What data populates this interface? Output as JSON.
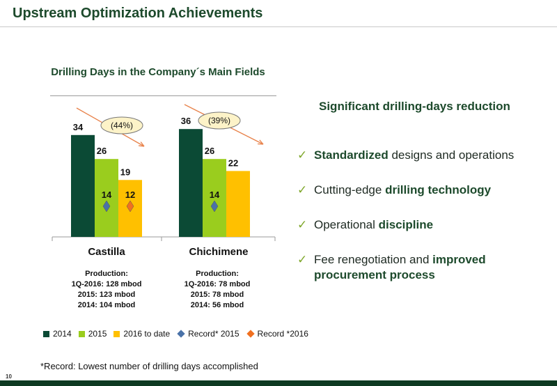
{
  "title": "Upstream Optimization Achievements",
  "colors": {
    "series_2014": "#0b4a35",
    "series_2015": "#9acd1e",
    "series_2016": "#ffc000",
    "record_2015": "#4a72a8",
    "record_2016": "#f07020",
    "brand_green": "#1d4a2c",
    "check_green": "#7fa72b",
    "footer_bar": "#0e3a22"
  },
  "chart_data": {
    "type": "bar",
    "title": "Drilling Days in the Company´s Main Fields",
    "categories": [
      "Castilla",
      "Chichimene"
    ],
    "series": [
      {
        "name": "2014",
        "values": [
          34,
          36
        ]
      },
      {
        "name": "2015",
        "values": [
          26,
          26
        ]
      },
      {
        "name": "2016 to date",
        "values": [
          19,
          22
        ]
      }
    ],
    "markers": [
      {
        "name": "Record* 2015",
        "values": [
          14,
          14
        ],
        "shape": "diamond"
      },
      {
        "name": "Record *2016",
        "values": [
          12,
          null
        ],
        "shape": "diamond"
      }
    ],
    "annotations": [
      {
        "category": "Castilla",
        "text": "(44%)"
      },
      {
        "category": "Chichimene",
        "text": "(39%)"
      }
    ],
    "ylim": [
      0,
      40
    ],
    "grid": false,
    "legend": "bottom"
  },
  "production": [
    {
      "title": "Production:",
      "lines": [
        "1Q-2016: 128 mbod",
        "2015: 123 mbod",
        "2014: 104 mbod"
      ]
    },
    {
      "title": "Production:",
      "lines": [
        "1Q-2016: 78 mbod",
        "2015: 78 mbod",
        "2014: 56 mbod"
      ]
    }
  ],
  "right_heading": "Significant drilling-days reduction",
  "bullets": [
    {
      "check": "✓",
      "before": "",
      "bold": "Standardized",
      "after": " designs and operations"
    },
    {
      "check": "✓",
      "before": "Cutting-edge ",
      "bold": "drilling technology",
      "after": ""
    },
    {
      "check": "✓",
      "before": "Operational ",
      "bold": "discipline",
      "after": ""
    },
    {
      "check": "✓",
      "before": "Fee renegotiation and ",
      "bold": "improved procurement process",
      "after": ""
    }
  ],
  "footnote": "*Record: Lowest number of drilling days accomplished",
  "page_number": "10"
}
